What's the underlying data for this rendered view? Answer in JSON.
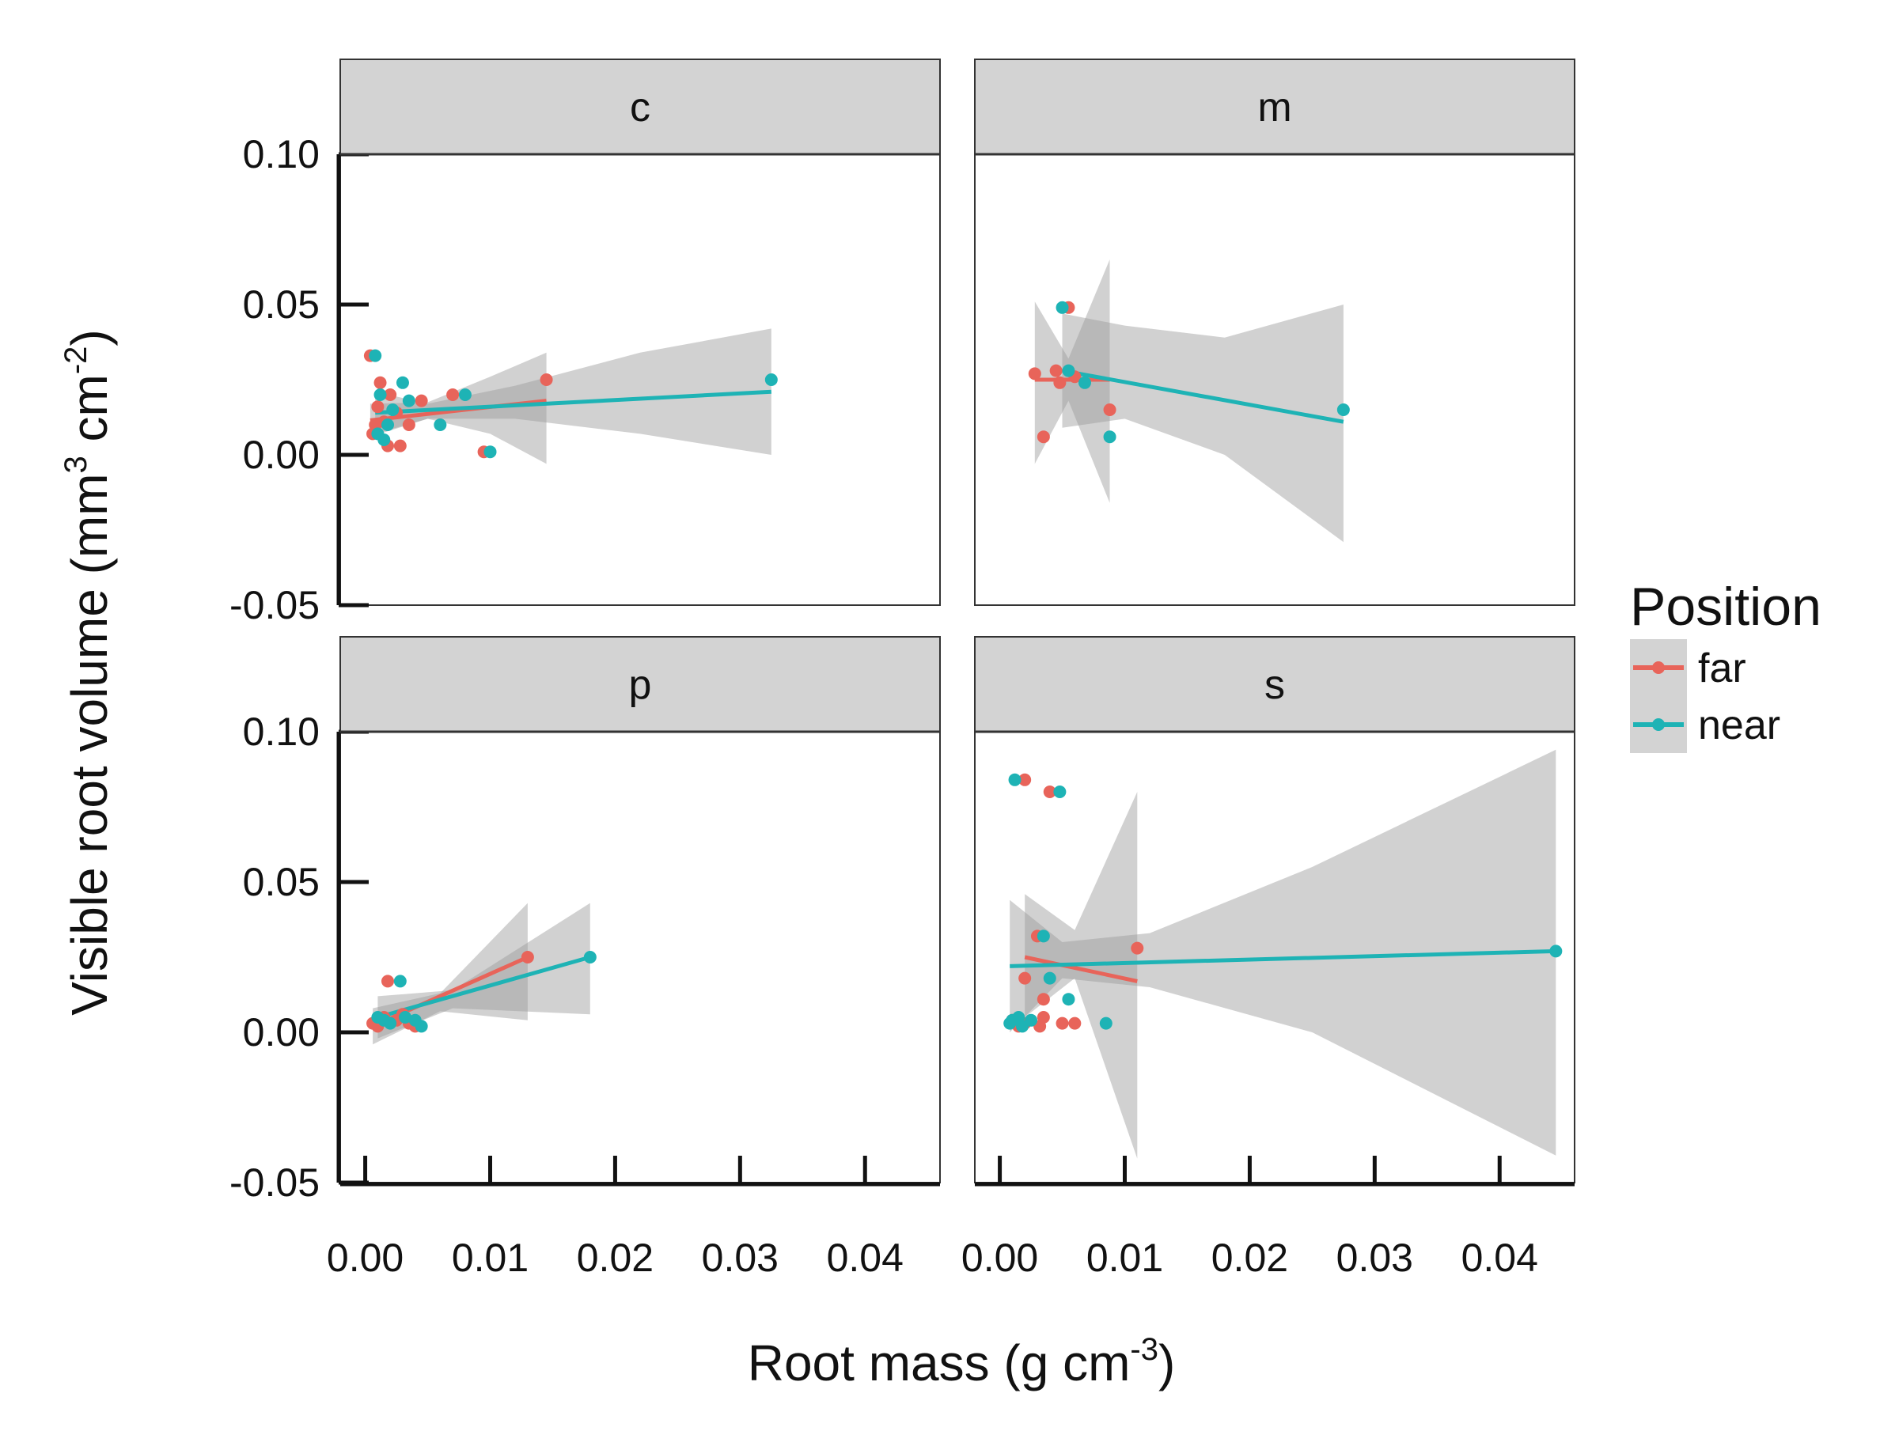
{
  "chart_data": {
    "type": "scatter",
    "subtype": "faceted scatter with linear fits and confidence bands",
    "facet_labels": [
      "c",
      "m",
      "p",
      "s"
    ],
    "xlabel": {
      "prefix": "Root mass (g cm",
      "sup": "-3",
      "suffix": ")"
    },
    "ylabel": {
      "prefix": "Visible root volume (mm",
      "sup1": "3",
      "mid": " cm",
      "sup2": "-2",
      "suffix": ")"
    },
    "xlim": [
      -0.002,
      0.046
    ],
    "ylim": [
      -0.05,
      0.1
    ],
    "x_ticks": [
      0.0,
      0.01,
      0.02,
      0.03,
      0.04
    ],
    "x_tick_labels": [
      "0.00",
      "0.01",
      "0.02",
      "0.03",
      "0.04"
    ],
    "y_ticks": [
      -0.05,
      0.0,
      0.05,
      0.1
    ],
    "y_tick_labels": [
      "-0.05",
      "0.00",
      "0.05",
      "0.10"
    ],
    "legend": {
      "title": "Position",
      "entries": [
        "far",
        "near"
      ],
      "position": "right"
    },
    "colors": {
      "far": "#E8645A",
      "near": "#1EB3B5",
      "band": "#999999",
      "strip": "#D3D3D3"
    },
    "panels": [
      {
        "label": "c",
        "series": [
          {
            "name": "far",
            "points": [
              [
                0.0004,
                0.033
              ],
              [
                0.0006,
                0.007
              ],
              [
                0.0008,
                0.01
              ],
              [
                0.001,
                0.016
              ],
              [
                0.0012,
                0.024
              ],
              [
                0.0015,
                0.011
              ],
              [
                0.0018,
                0.003
              ],
              [
                0.002,
                0.02
              ],
              [
                0.0025,
                0.014
              ],
              [
                0.0028,
                0.003
              ],
              [
                0.0035,
                0.01
              ],
              [
                0.0045,
                0.018
              ],
              [
                0.007,
                0.02
              ],
              [
                0.0095,
                0.001
              ],
              [
                0.0145,
                0.025
              ]
            ],
            "fit": {
              "x0": 0.0004,
              "x1": 0.0145,
              "y0": 0.0115,
              "y1": 0.018
            },
            "band": {
              "x": [
                0.0004,
                0.005,
                0.01,
                0.0145
              ],
              "lower": [
                0.006,
                0.012,
                0.007,
                -0.003
              ],
              "upper": [
                0.017,
                0.0175,
                0.026,
                0.034
              ]
            }
          },
          {
            "name": "near",
            "points": [
              [
                0.0008,
                0.033
              ],
              [
                0.001,
                0.007
              ],
              [
                0.0012,
                0.02
              ],
              [
                0.0015,
                0.005
              ],
              [
                0.0018,
                0.01
              ],
              [
                0.0022,
                0.015
              ],
              [
                0.003,
                0.024
              ],
              [
                0.0035,
                0.018
              ],
              [
                0.006,
                0.01
              ],
              [
                0.008,
                0.02
              ],
              [
                0.01,
                0.001
              ],
              [
                0.0325,
                0.025
              ]
            ],
            "fit": {
              "x0": 0.0008,
              "x1": 0.0325,
              "y0": 0.014,
              "y1": 0.021
            },
            "band": {
              "x": [
                0.0008,
                0.005,
                0.012,
                0.022,
                0.0325
              ],
              "lower": [
                0.007,
                0.012,
                0.012,
                0.007,
                0.0
              ],
              "upper": [
                0.021,
                0.017,
                0.023,
                0.034,
                0.042
              ]
            }
          }
        ]
      },
      {
        "label": "m",
        "series": [
          {
            "name": "far",
            "points": [
              [
                0.0028,
                0.027
              ],
              [
                0.0035,
                0.006
              ],
              [
                0.0045,
                0.028
              ],
              [
                0.0048,
                0.024
              ],
              [
                0.0055,
                0.049
              ],
              [
                0.006,
                0.026
              ],
              [
                0.0088,
                0.015
              ]
            ],
            "fit": {
              "x0": 0.0028,
              "x1": 0.0088,
              "y0": 0.025,
              "y1": 0.025
            },
            "band": {
              "x": [
                0.0028,
                0.0055,
                0.0088
              ],
              "lower": [
                -0.003,
                0.018,
                -0.016
              ],
              "upper": [
                0.051,
                0.032,
                0.065
              ]
            }
          },
          {
            "name": "near",
            "points": [
              [
                0.005,
                0.049
              ],
              [
                0.0055,
                0.028
              ],
              [
                0.0068,
                0.024
              ],
              [
                0.0088,
                0.006
              ],
              [
                0.0275,
                0.015
              ]
            ],
            "fit": {
              "x0": 0.005,
              "x1": 0.0275,
              "y0": 0.028,
              "y1": 0.011
            },
            "band": {
              "x": [
                0.005,
                0.01,
                0.018,
                0.0275
              ],
              "lower": [
                0.009,
                0.012,
                0.0,
                -0.029
              ],
              "upper": [
                0.047,
                0.043,
                0.039,
                0.05
              ]
            }
          }
        ]
      },
      {
        "label": "p",
        "series": [
          {
            "name": "far",
            "points": [
              [
                0.0006,
                0.003
              ],
              [
                0.001,
                0.002
              ],
              [
                0.0015,
                0.005
              ],
              [
                0.0018,
                0.017
              ],
              [
                0.0025,
                0.004
              ],
              [
                0.003,
                0.006
              ],
              [
                0.0035,
                0.003
              ],
              [
                0.004,
                0.002
              ],
              [
                0.013,
                0.025
              ]
            ],
            "fit": {
              "x0": 0.0006,
              "x1": 0.013,
              "y0": 0.002,
              "y1": 0.025
            },
            "band": {
              "x": [
                0.0006,
                0.006,
                0.013
              ],
              "lower": [
                -0.004,
                0.007,
                0.004
              ],
              "upper": [
                0.008,
                0.013,
                0.043
              ]
            }
          },
          {
            "name": "near",
            "points": [
              [
                0.001,
                0.005
              ],
              [
                0.0015,
                0.004
              ],
              [
                0.002,
                0.003
              ],
              [
                0.0028,
                0.017
              ],
              [
                0.0032,
                0.005
              ],
              [
                0.004,
                0.004
              ],
              [
                0.0045,
                0.002
              ],
              [
                0.018,
                0.025
              ]
            ],
            "fit": {
              "x0": 0.001,
              "x1": 0.018,
              "y0": 0.005,
              "y1": 0.025
            },
            "band": {
              "x": [
                0.001,
                0.007,
                0.018
              ],
              "lower": [
                -0.002,
                0.008,
                0.006
              ],
              "upper": [
                0.012,
                0.014,
                0.043
              ]
            }
          }
        ]
      },
      {
        "label": "s",
        "series": [
          {
            "name": "far",
            "points": [
              [
                0.001,
                0.004
              ],
              [
                0.0015,
                0.002
              ],
              [
                0.002,
                0.003
              ],
              [
                0.002,
                0.084
              ],
              [
                0.003,
                0.032
              ],
              [
                0.0032,
                0.002
              ],
              [
                0.0035,
                0.011
              ],
              [
                0.0035,
                0.005
              ],
              [
                0.004,
                0.08
              ],
              [
                0.005,
                0.003
              ],
              [
                0.006,
                0.003
              ],
              [
                0.011,
                0.028
              ],
              [
                0.002,
                0.018
              ]
            ],
            "fit": {
              "x0": 0.002,
              "x1": 0.011,
              "y0": 0.025,
              "y1": 0.017
            },
            "band": {
              "x": [
                0.002,
                0.006,
                0.011
              ],
              "lower": [
                0.005,
                0.018,
                -0.042
              ],
              "upper": [
                0.046,
                0.034,
                0.08
              ]
            }
          },
          {
            "name": "near",
            "points": [
              [
                0.0008,
                0.003
              ],
              [
                0.001,
                0.004
              ],
              [
                0.0012,
                0.084
              ],
              [
                0.0015,
                0.005
              ],
              [
                0.0018,
                0.002
              ],
              [
                0.0025,
                0.004
              ],
              [
                0.0035,
                0.032
              ],
              [
                0.004,
                0.018
              ],
              [
                0.0048,
                0.08
              ],
              [
                0.0055,
                0.011
              ],
              [
                0.0085,
                0.003
              ],
              [
                0.0445,
                0.027
              ]
            ],
            "fit": {
              "x0": 0.0008,
              "x1": 0.0445,
              "y0": 0.022,
              "y1": 0.027
            },
            "band": {
              "x": [
                0.0008,
                0.005,
                0.012,
                0.025,
                0.0445
              ],
              "lower": [
                0.0,
                0.018,
                0.015,
                0.0,
                -0.041
              ],
              "upper": [
                0.044,
                0.03,
                0.033,
                0.055,
                0.094
              ]
            }
          }
        ]
      }
    ]
  }
}
